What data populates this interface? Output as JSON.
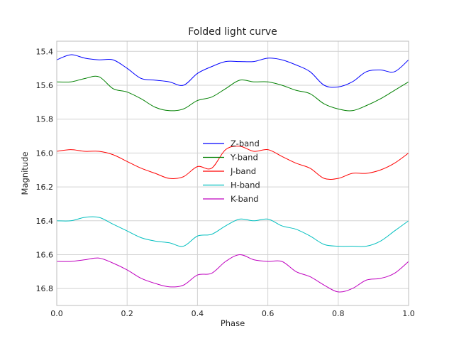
{
  "chart_data": {
    "type": "line",
    "title": "Folded light curve",
    "xlabel": "Phase",
    "ylabel": "Magnitude",
    "xlim": [
      0.0,
      1.0
    ],
    "ylim": [
      16.9,
      15.34
    ],
    "y_inverted": true,
    "grid": true,
    "legend_position": "center",
    "xticks": [
      "0.0",
      "0.2",
      "0.4",
      "0.6",
      "0.8",
      "1.0"
    ],
    "yticks": [
      "15.4",
      "15.6",
      "15.8",
      "16.0",
      "16.2",
      "16.4",
      "16.6",
      "16.8"
    ],
    "x": [
      0.0,
      0.04,
      0.08,
      0.12,
      0.16,
      0.2,
      0.24,
      0.28,
      0.32,
      0.36,
      0.4,
      0.44,
      0.48,
      0.52,
      0.56,
      0.6,
      0.64,
      0.68,
      0.72,
      0.76,
      0.8,
      0.84,
      0.88,
      0.92,
      0.96,
      1.0
    ],
    "series": [
      {
        "name": "Z-band",
        "color": "#0000ff",
        "values": [
          15.45,
          15.42,
          15.44,
          15.45,
          15.45,
          15.5,
          15.56,
          15.57,
          15.58,
          15.6,
          15.53,
          15.49,
          15.46,
          15.46,
          15.46,
          15.44,
          15.45,
          15.48,
          15.52,
          15.6,
          15.61,
          15.58,
          15.52,
          15.51,
          15.52,
          15.45
        ]
      },
      {
        "name": "Y-band",
        "color": "#008000",
        "values": [
          15.58,
          15.58,
          15.56,
          15.55,
          15.62,
          15.64,
          15.68,
          15.73,
          15.75,
          15.74,
          15.69,
          15.67,
          15.62,
          15.57,
          15.58,
          15.58,
          15.6,
          15.63,
          15.65,
          15.71,
          15.74,
          15.75,
          15.72,
          15.68,
          15.63,
          15.58
        ]
      },
      {
        "name": "J-band",
        "color": "#ff0000",
        "values": [
          15.99,
          15.98,
          15.99,
          15.99,
          16.01,
          16.05,
          16.09,
          16.12,
          16.15,
          16.14,
          16.08,
          16.09,
          15.98,
          15.96,
          15.99,
          15.98,
          16.02,
          16.06,
          16.09,
          16.15,
          16.15,
          16.12,
          16.12,
          16.1,
          16.06,
          16.0
        ]
      },
      {
        "name": "H-band",
        "color": "#00bfbf",
        "values": [
          16.4,
          16.4,
          16.38,
          16.38,
          16.42,
          16.46,
          16.5,
          16.52,
          16.53,
          16.55,
          16.49,
          16.48,
          16.43,
          16.39,
          16.4,
          16.39,
          16.43,
          16.45,
          16.49,
          16.54,
          16.55,
          16.55,
          16.55,
          16.52,
          16.46,
          16.4
        ]
      },
      {
        "name": "K-band",
        "color": "#bf00bf",
        "values": [
          16.64,
          16.64,
          16.63,
          16.62,
          16.65,
          16.69,
          16.74,
          16.77,
          16.79,
          16.78,
          16.72,
          16.71,
          16.64,
          16.6,
          16.63,
          16.64,
          16.64,
          16.7,
          16.73,
          16.78,
          16.82,
          16.8,
          16.75,
          16.74,
          16.71,
          16.64
        ]
      }
    ]
  }
}
